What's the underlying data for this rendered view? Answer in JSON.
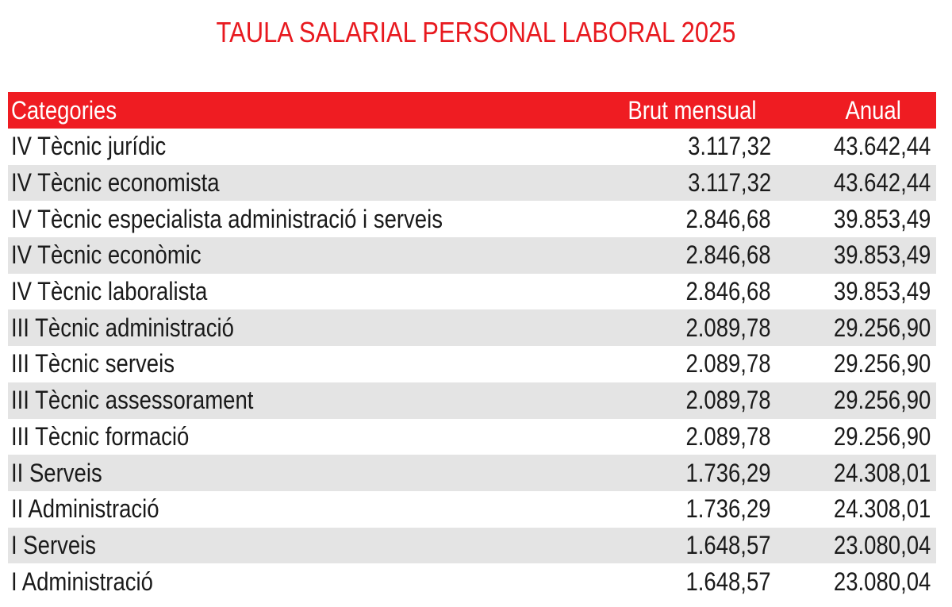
{
  "title": "TAULA SALARIAL PERSONAL LABORAL 2025",
  "colors": {
    "title": "#e8191f",
    "header_bg": "#ef1c22",
    "header_text": "#ffffff",
    "stripe": "#e4e4e4"
  },
  "table": {
    "headers": {
      "category": "Categories",
      "monthly": "Brut mensual",
      "annual": "Anual"
    },
    "rows": [
      {
        "category": "IV Tècnic jurídic",
        "monthly": "3.117,32",
        "annual": "43.642,44"
      },
      {
        "category": "IV Tècnic economista",
        "monthly": "3.117,32",
        "annual": "43.642,44"
      },
      {
        "category": "IV Tècnic especialista administració i serveis",
        "monthly": "2.846,68",
        "annual": "39.853,49"
      },
      {
        "category": "IV Tècnic econòmic",
        "monthly": "2.846,68",
        "annual": "39.853,49"
      },
      {
        "category": "IV Tècnic laboralista",
        "monthly": "2.846,68",
        "annual": "39.853,49"
      },
      {
        "category": "III Tècnic administració",
        "monthly": "2.089,78",
        "annual": "29.256,90"
      },
      {
        "category": "III Tècnic serveis",
        "monthly": "2.089,78",
        "annual": "29.256,90"
      },
      {
        "category": "III Tècnic assessorament",
        "monthly": "2.089,78",
        "annual": "29.256,90"
      },
      {
        "category": "III Tècnic formació",
        "monthly": "2.089,78",
        "annual": "29.256,90"
      },
      {
        "category": "II Serveis",
        "monthly": "1.736,29",
        "annual": "24.308,01"
      },
      {
        "category": "II Administració",
        "monthly": "1.736,29",
        "annual": "24.308,01"
      },
      {
        "category": "I Serveis",
        "monthly": "1.648,57",
        "annual": "23.080,04"
      },
      {
        "category": "I Administració",
        "monthly": "1.648,57",
        "annual": "23.080,04"
      }
    ]
  }
}
